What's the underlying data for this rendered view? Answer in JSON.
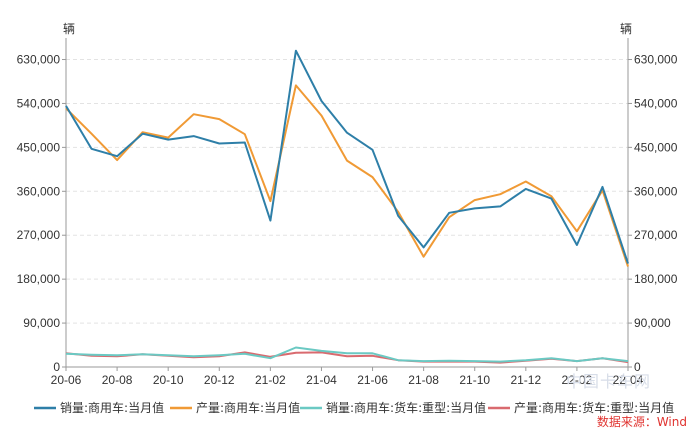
{
  "chart_data": {
    "type": "line",
    "y_unit_left": "辆",
    "y_unit_right": "辆",
    "ylim": [
      0,
      670000
    ],
    "yticks": [
      0,
      90000,
      180000,
      270000,
      360000,
      450000,
      540000,
      630000
    ],
    "ytick_labels": [
      "0",
      "90,000",
      "180,000",
      "270,000",
      "360,000",
      "450,000",
      "540,000",
      "630,000"
    ],
    "ytick_labels_right": [
      "0",
      "90,000",
      "180,000",
      "270,000",
      "360,000",
      "450,000",
      "540,000",
      "630,000"
    ],
    "categories": [
      "20-06",
      "20-07",
      "20-08",
      "20-09",
      "20-10",
      "20-11",
      "20-12",
      "21-01",
      "21-02",
      "21-03",
      "21-04",
      "21-05",
      "21-06",
      "21-07",
      "21-08",
      "21-09",
      "21-10",
      "21-11",
      "21-12",
      "22-01",
      "22-02",
      "22-03",
      "22-04"
    ],
    "x_tick_labels": [
      "20-06",
      "20-08",
      "20-10",
      "20-12",
      "21-02",
      "21-04",
      "21-06",
      "21-08",
      "21-10",
      "21-12",
      "22-02",
      "22-04"
    ],
    "grid": true,
    "legend_position": "bottom",
    "series": [
      {
        "name": "销量:商用车:当月值",
        "color": "#2e7fa8",
        "values": [
          535000,
          447000,
          432000,
          478000,
          466000,
          473000,
          458000,
          460000,
          300000,
          648000,
          545000,
          480000,
          445000,
          310000,
          245000,
          316000,
          325000,
          329000,
          365000,
          345000,
          250000,
          369000,
          212000
        ]
      },
      {
        "name": "产量:商用车:当月值",
        "color": "#f09a35",
        "values": [
          530000,
          478000,
          424000,
          481000,
          470000,
          518000,
          508000,
          477000,
          340000,
          577000,
          515000,
          423000,
          389000,
          318000,
          226000,
          307000,
          342000,
          354000,
          380000,
          350000,
          278000,
          362000,
          206000
        ]
      },
      {
        "name": "销量:商用车:货车:重型:当月值",
        "color": "#6bc9c3",
        "values": [
          27000,
          25000,
          24000,
          26000,
          24000,
          22000,
          24000,
          27000,
          18000,
          40000,
          33000,
          28000,
          28000,
          14000,
          12000,
          13000,
          12000,
          11000,
          14000,
          18000,
          12000,
          18000,
          12000
        ]
      },
      {
        "name": "产量:商用车:货车:重型:当月值",
        "color": "#d96a6f",
        "values": [
          28000,
          23000,
          22000,
          26000,
          23000,
          20000,
          22000,
          30000,
          21000,
          29000,
          30000,
          22000,
          23000,
          14000,
          11000,
          11000,
          11000,
          9000,
          13000,
          17000,
          12000,
          18000,
          10000
        ]
      }
    ]
  },
  "source_label": "数据来源：Wind",
  "watermark_text": "中国卡车网"
}
